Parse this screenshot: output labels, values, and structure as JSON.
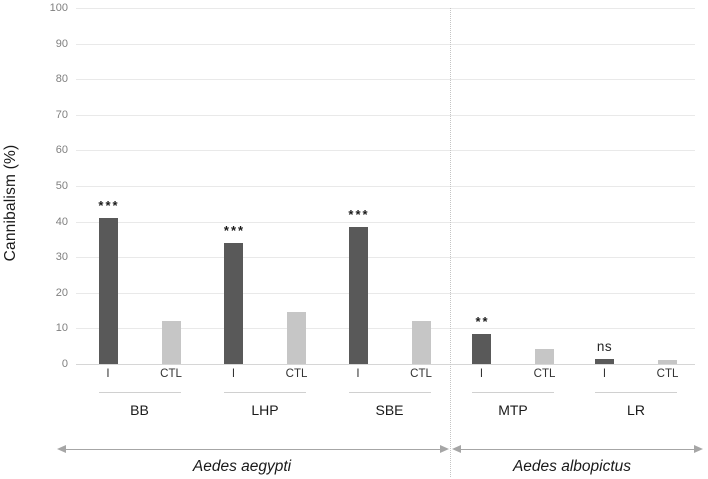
{
  "figure": {
    "background": "#ffffff"
  },
  "colors": {
    "bar_infected": "#595959",
    "bar_control": "#c6c6c6",
    "gridline": "#e9e9e9",
    "zero_line": "#d6d6d6",
    "tick_text": "#7f7f7f",
    "label_text": "#1a1a1a",
    "arrow": "#a6a6a6",
    "divider_dotted": "#c4c4c4",
    "bracket": "#d0d0d0"
  },
  "chart_data": {
    "type": "bar",
    "title": "",
    "xlabel": "",
    "ylabel": "Cannibalism (%)",
    "ylim": [
      0,
      100
    ],
    "yticks": [
      0,
      10,
      20,
      30,
      40,
      50,
      60,
      70,
      80,
      90,
      100
    ],
    "grid": true,
    "legend": "none",
    "condition_labels": [
      "I",
      "CTL"
    ],
    "groups": [
      {
        "label": "BB",
        "values": {
          "I": 41,
          "CTL": 12
        },
        "significance": "***"
      },
      {
        "label": "LHP",
        "values": {
          "I": 34,
          "CTL": 14.5
        },
        "significance": "***"
      },
      {
        "label": "SBE",
        "values": {
          "I": 38.5,
          "CTL": 12
        },
        "significance": "***"
      },
      {
        "label": "MTP",
        "values": {
          "I": 8.5,
          "CTL": 4.3
        },
        "significance": "**"
      },
      {
        "label": "LR",
        "values": {
          "I": 1.5,
          "CTL": 1
        },
        "significance": "ns"
      }
    ],
    "species_spans": [
      {
        "label": "Aedes aegypti",
        "group_indices": [
          0,
          1,
          2
        ]
      },
      {
        "label": "Aedes albopictus",
        "group_indices": [
          3,
          4
        ]
      }
    ]
  }
}
